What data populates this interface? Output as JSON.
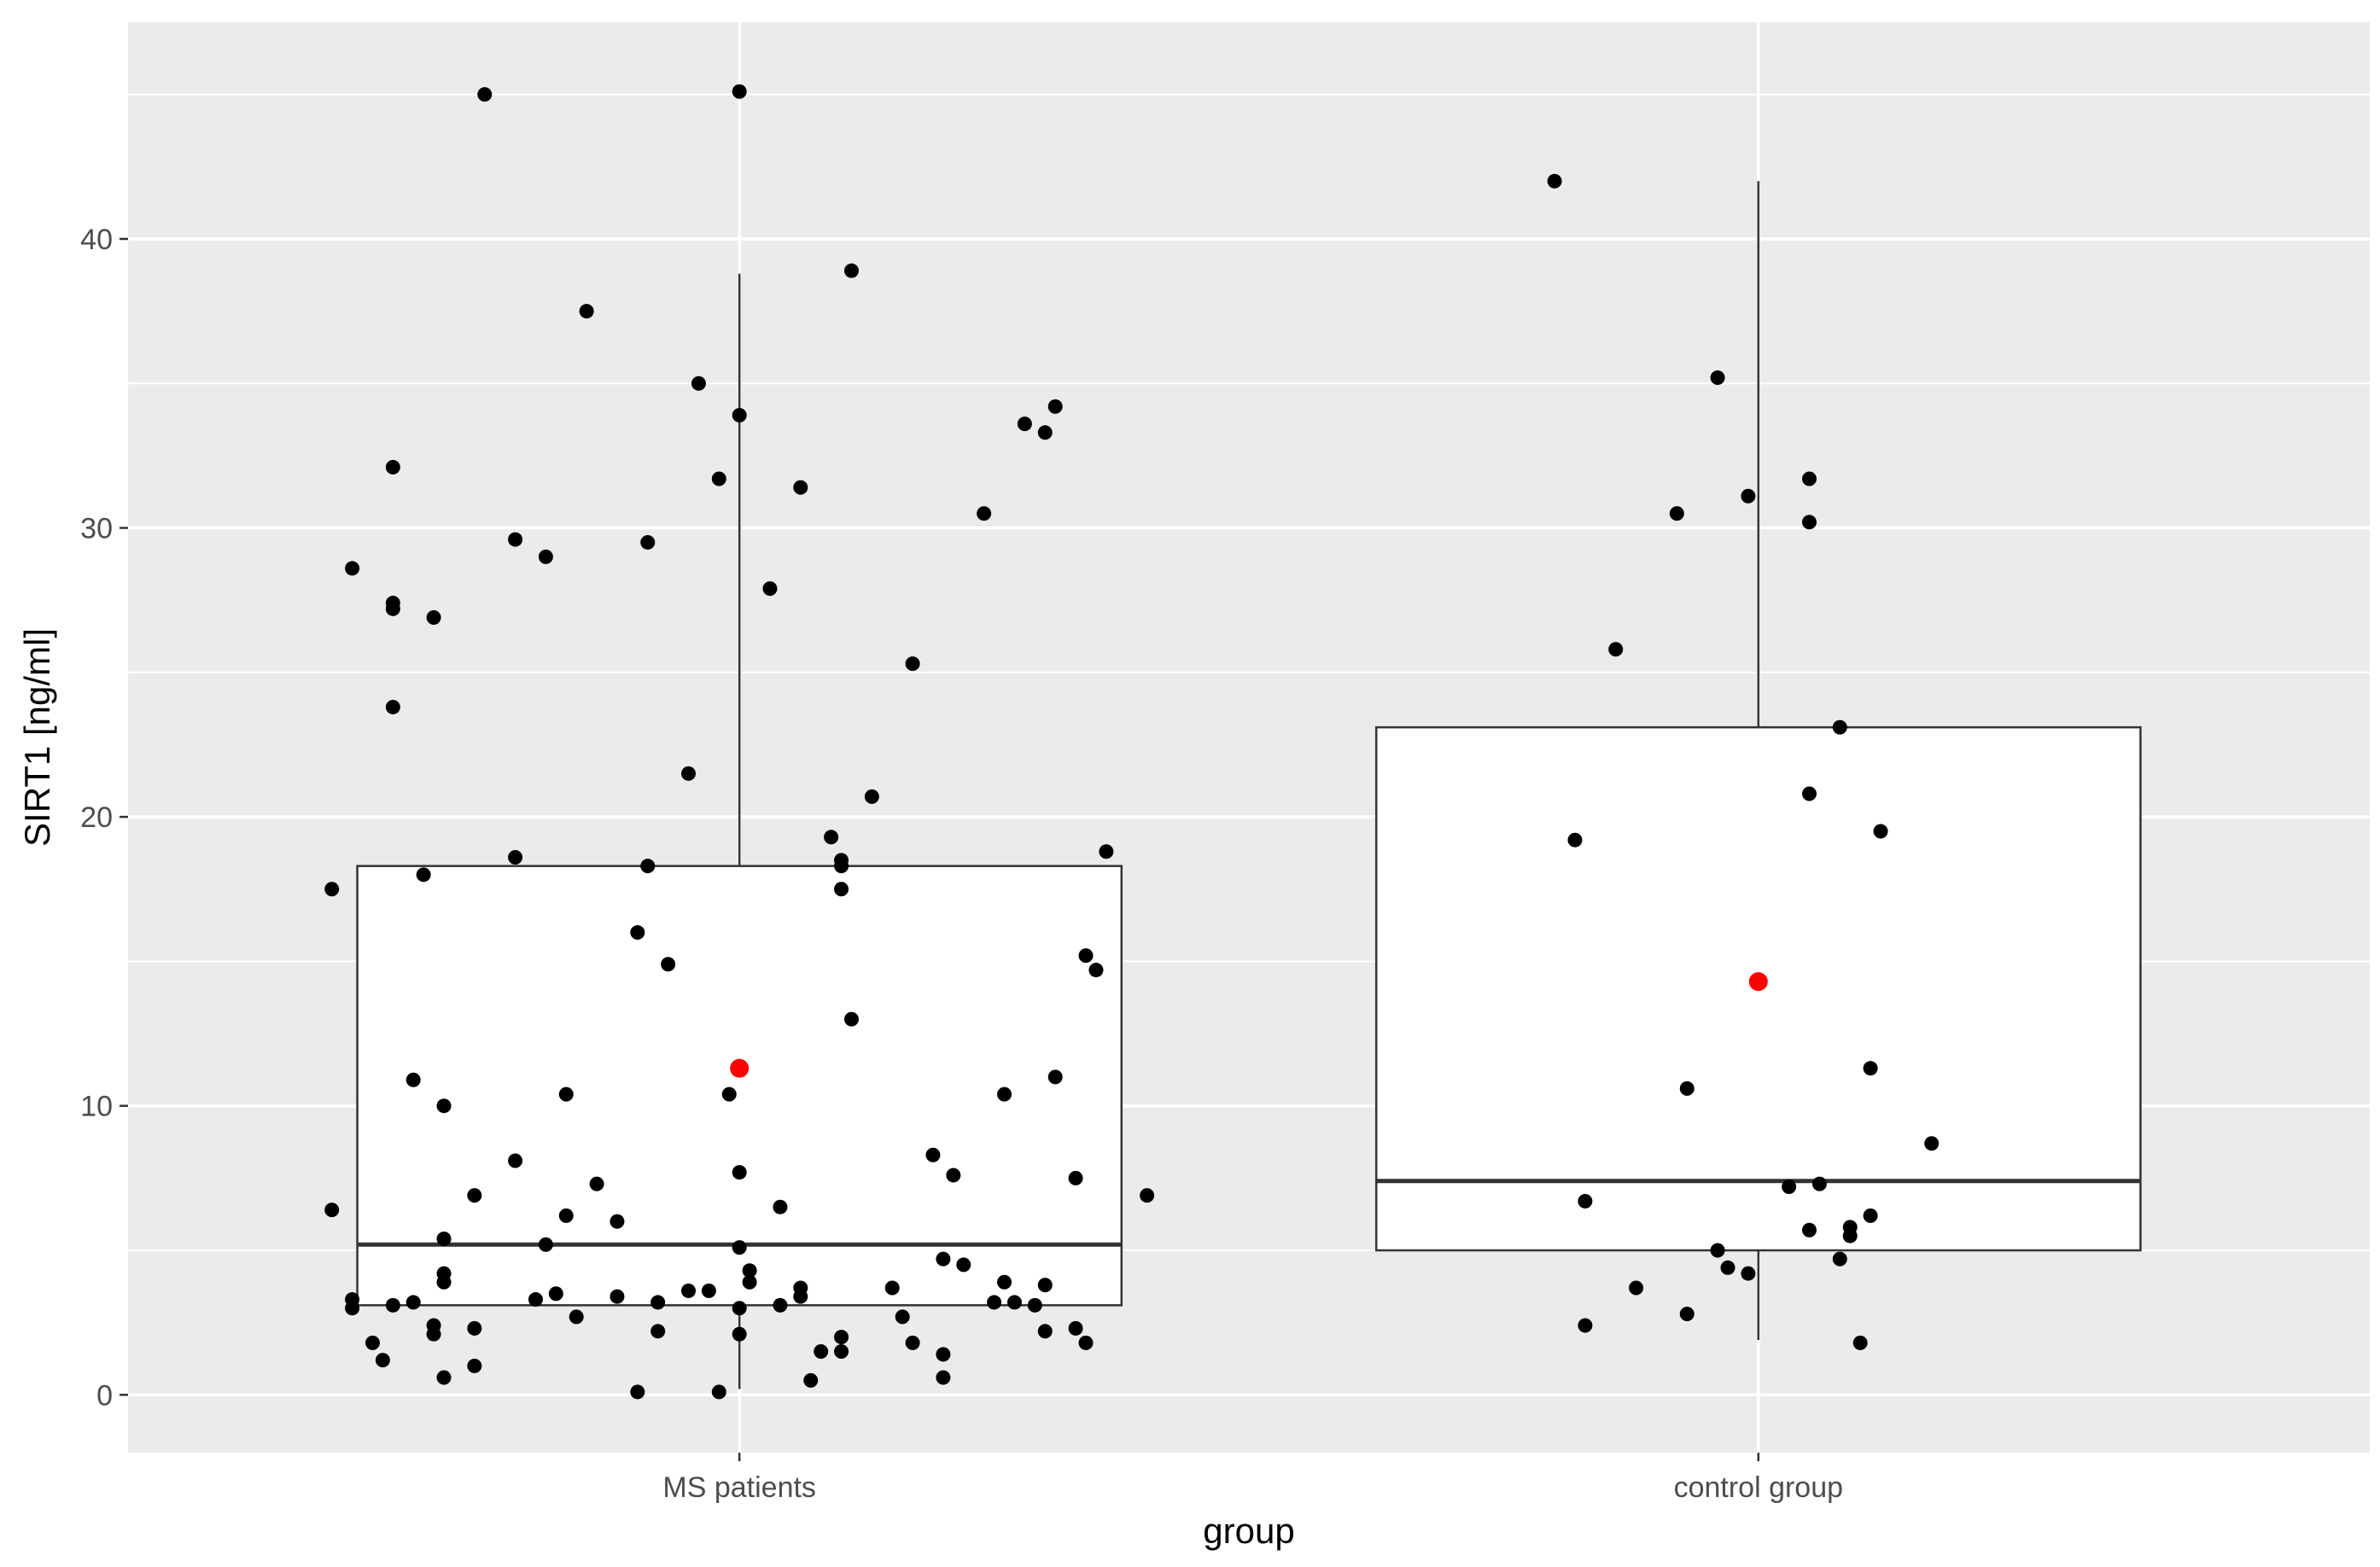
{
  "chart_data": {
    "type": "boxplot",
    "xlabel": "group",
    "ylabel": "SIRT1 [ng/ml]",
    "categories": [
      "MS patients",
      "control group"
    ],
    "ylim": [
      -2.0,
      47.5
    ],
    "yticks": [
      0,
      10,
      20,
      30,
      40
    ],
    "ytick_labels": [
      "0",
      "10",
      "20",
      "30",
      "40"
    ],
    "grid": true,
    "legend": "none",
    "colors": {
      "panel_background": "#ebebeb",
      "grid_line": "#ffffff",
      "box_fill": "#ffffff",
      "box_stroke": "#333333",
      "point": "#000000",
      "mean_point": "#ff0000"
    },
    "boxes": [
      {
        "category": "MS patients",
        "whisker_low": 0.2,
        "q1": 3.1,
        "median": 5.2,
        "q3": 18.3,
        "whisker_high": 38.8,
        "mean": 11.3
      },
      {
        "category": "control group",
        "whisker_low": 1.9,
        "q1": 5.0,
        "median": 7.4,
        "q3": 23.1,
        "whisker_high": 42.0,
        "mean": 14.3
      }
    ],
    "points": [
      {
        "category": "MS patients",
        "values": [
          {
            "jitter": -0.25,
            "y": 45.0
          },
          {
            "jitter": 0.0,
            "y": 45.1
          },
          {
            "jitter": 0.11,
            "y": 38.9
          },
          {
            "jitter": -0.15,
            "y": 37.5
          },
          {
            "jitter": -0.04,
            "y": 35.0
          },
          {
            "jitter": 0.0,
            "y": 33.9
          },
          {
            "jitter": 0.31,
            "y": 34.2
          },
          {
            "jitter": 0.28,
            "y": 33.6
          },
          {
            "jitter": 0.3,
            "y": 33.3
          },
          {
            "jitter": -0.34,
            "y": 32.1
          },
          {
            "jitter": -0.02,
            "y": 31.7
          },
          {
            "jitter": 0.06,
            "y": 31.4
          },
          {
            "jitter": 0.24,
            "y": 30.5
          },
          {
            "jitter": -0.22,
            "y": 29.6
          },
          {
            "jitter": -0.09,
            "y": 29.5
          },
          {
            "jitter": -0.19,
            "y": 29.0
          },
          {
            "jitter": -0.38,
            "y": 28.6
          },
          {
            "jitter": 0.03,
            "y": 27.9
          },
          {
            "jitter": -0.34,
            "y": 27.4
          },
          {
            "jitter": -0.34,
            "y": 27.2
          },
          {
            "jitter": -0.3,
            "y": 26.9
          },
          {
            "jitter": 0.17,
            "y": 25.3
          },
          {
            "jitter": -0.34,
            "y": 23.8
          },
          {
            "jitter": -0.05,
            "y": 21.5
          },
          {
            "jitter": 0.13,
            "y": 20.7
          },
          {
            "jitter": 0.09,
            "y": 19.3
          },
          {
            "jitter": 0.36,
            "y": 18.8
          },
          {
            "jitter": -0.22,
            "y": 18.6
          },
          {
            "jitter": 0.1,
            "y": 18.5
          },
          {
            "jitter": 0.1,
            "y": 18.3
          },
          {
            "jitter": -0.09,
            "y": 18.3
          },
          {
            "jitter": -0.31,
            "y": 18.0
          },
          {
            "jitter": -0.4,
            "y": 17.5
          },
          {
            "jitter": 0.1,
            "y": 17.5
          },
          {
            "jitter": -0.1,
            "y": 16.0
          },
          {
            "jitter": 0.34,
            "y": 15.2
          },
          {
            "jitter": 0.35,
            "y": 14.7
          },
          {
            "jitter": -0.07,
            "y": 14.9
          },
          {
            "jitter": 0.11,
            "y": 13.0
          },
          {
            "jitter": -0.32,
            "y": 10.9
          },
          {
            "jitter": 0.31,
            "y": 11.0
          },
          {
            "jitter": -0.17,
            "y": 10.4
          },
          {
            "jitter": -0.01,
            "y": 10.4
          },
          {
            "jitter": 0.26,
            "y": 10.4
          },
          {
            "jitter": -0.29,
            "y": 10.0
          },
          {
            "jitter": 0.19,
            "y": 8.3
          },
          {
            "jitter": -0.22,
            "y": 8.1
          },
          {
            "jitter": 0.21,
            "y": 7.6
          },
          {
            "jitter": 0.0,
            "y": 7.7
          },
          {
            "jitter": 0.33,
            "y": 7.5
          },
          {
            "jitter": -0.14,
            "y": 7.3
          },
          {
            "jitter": -0.26,
            "y": 6.9
          },
          {
            "jitter": 0.4,
            "y": 6.9
          },
          {
            "jitter": 0.04,
            "y": 6.5
          },
          {
            "jitter": -0.4,
            "y": 6.4
          },
          {
            "jitter": -0.17,
            "y": 6.2
          },
          {
            "jitter": -0.12,
            "y": 6.0
          },
          {
            "jitter": -0.29,
            "y": 5.4
          },
          {
            "jitter": 0.0,
            "y": 5.1
          },
          {
            "jitter": -0.19,
            "y": 5.2
          },
          {
            "jitter": 0.2,
            "y": 4.7
          },
          {
            "jitter": 0.22,
            "y": 4.5
          },
          {
            "jitter": 0.01,
            "y": 4.3
          },
          {
            "jitter": -0.29,
            "y": 4.2
          },
          {
            "jitter": -0.29,
            "y": 3.9
          },
          {
            "jitter": 0.01,
            "y": 3.9
          },
          {
            "jitter": 0.26,
            "y": 3.9
          },
          {
            "jitter": 0.15,
            "y": 3.7
          },
          {
            "jitter": 0.3,
            "y": 3.8
          },
          {
            "jitter": 0.06,
            "y": 3.7
          },
          {
            "jitter": -0.05,
            "y": 3.6
          },
          {
            "jitter": -0.18,
            "y": 3.5
          },
          {
            "jitter": -0.03,
            "y": 3.6
          },
          {
            "jitter": 0.06,
            "y": 3.4
          },
          {
            "jitter": -0.12,
            "y": 3.4
          },
          {
            "jitter": -0.2,
            "y": 3.3
          },
          {
            "jitter": -0.38,
            "y": 3.3
          },
          {
            "jitter": -0.32,
            "y": 3.2
          },
          {
            "jitter": -0.08,
            "y": 3.2
          },
          {
            "jitter": 0.25,
            "y": 3.2
          },
          {
            "jitter": 0.27,
            "y": 3.2
          },
          {
            "jitter": -0.38,
            "y": 3.0
          },
          {
            "jitter": -0.34,
            "y": 3.1
          },
          {
            "jitter": 0.04,
            "y": 3.1
          },
          {
            "jitter": 0.29,
            "y": 3.1
          },
          {
            "jitter": 0.0,
            "y": 3.0
          },
          {
            "jitter": -0.16,
            "y": 2.7
          },
          {
            "jitter": 0.16,
            "y": 2.7
          },
          {
            "jitter": -0.3,
            "y": 2.4
          },
          {
            "jitter": -0.26,
            "y": 2.3
          },
          {
            "jitter": 0.33,
            "y": 2.3
          },
          {
            "jitter": -0.08,
            "y": 2.2
          },
          {
            "jitter": -0.3,
            "y": 2.1
          },
          {
            "jitter": 0.0,
            "y": 2.1
          },
          {
            "jitter": 0.3,
            "y": 2.2
          },
          {
            "jitter": 0.1,
            "y": 2.0
          },
          {
            "jitter": 0.17,
            "y": 1.8
          },
          {
            "jitter": -0.36,
            "y": 1.8
          },
          {
            "jitter": 0.34,
            "y": 1.8
          },
          {
            "jitter": 0.08,
            "y": 1.5
          },
          {
            "jitter": 0.1,
            "y": 1.5
          },
          {
            "jitter": 0.2,
            "y": 1.4
          },
          {
            "jitter": -0.35,
            "y": 1.2
          },
          {
            "jitter": -0.26,
            "y": 1.0
          },
          {
            "jitter": -0.29,
            "y": 0.6
          },
          {
            "jitter": 0.07,
            "y": 0.5
          },
          {
            "jitter": 0.2,
            "y": 0.6
          },
          {
            "jitter": -0.1,
            "y": 0.1
          },
          {
            "jitter": -0.02,
            "y": 0.1
          }
        ]
      },
      {
        "category": "control group",
        "values": [
          {
            "jitter": -0.2,
            "y": 42.0
          },
          {
            "jitter": -0.04,
            "y": 35.2
          },
          {
            "jitter": 0.05,
            "y": 31.7
          },
          {
            "jitter": -0.01,
            "y": 31.1
          },
          {
            "jitter": -0.08,
            "y": 30.5
          },
          {
            "jitter": 0.05,
            "y": 30.2
          },
          {
            "jitter": -0.14,
            "y": 25.8
          },
          {
            "jitter": 0.08,
            "y": 23.1
          },
          {
            "jitter": 0.05,
            "y": 20.8
          },
          {
            "jitter": 0.12,
            "y": 19.5
          },
          {
            "jitter": -0.18,
            "y": 19.2
          },
          {
            "jitter": 0.11,
            "y": 11.3
          },
          {
            "jitter": -0.07,
            "y": 10.6
          },
          {
            "jitter": 0.17,
            "y": 8.7
          },
          {
            "jitter": 0.06,
            "y": 7.3
          },
          {
            "jitter": 0.03,
            "y": 7.2
          },
          {
            "jitter": -0.17,
            "y": 6.7
          },
          {
            "jitter": 0.11,
            "y": 6.2
          },
          {
            "jitter": 0.09,
            "y": 5.8
          },
          {
            "jitter": 0.05,
            "y": 5.7
          },
          {
            "jitter": 0.09,
            "y": 5.5
          },
          {
            "jitter": -0.04,
            "y": 5.0
          },
          {
            "jitter": 0.08,
            "y": 4.7
          },
          {
            "jitter": -0.03,
            "y": 4.4
          },
          {
            "jitter": -0.01,
            "y": 4.2
          },
          {
            "jitter": -0.12,
            "y": 3.7
          },
          {
            "jitter": -0.07,
            "y": 2.8
          },
          {
            "jitter": -0.17,
            "y": 2.4
          },
          {
            "jitter": 0.1,
            "y": 1.8
          }
        ]
      }
    ]
  }
}
